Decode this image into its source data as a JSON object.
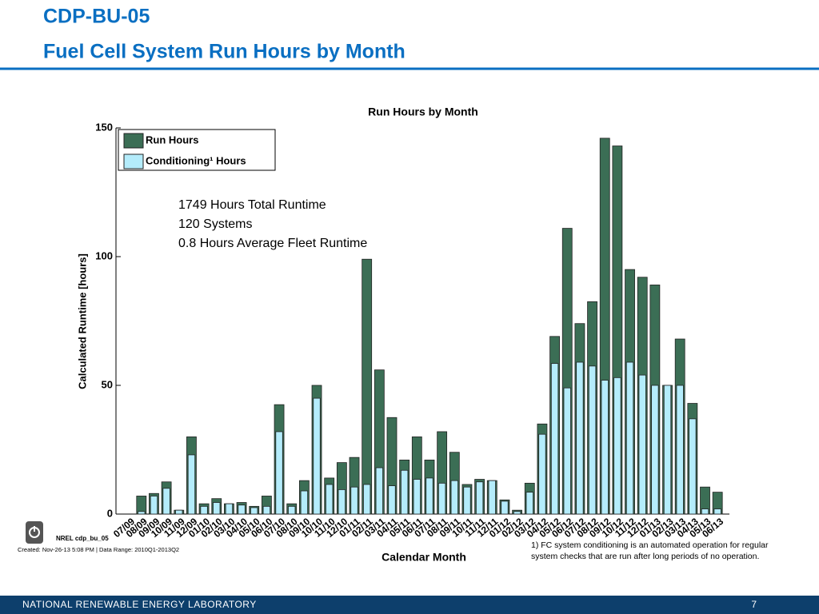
{
  "slide": {
    "title": [
      "CDP-BU-05",
      "Fuel Cell System Run Hours by Month"
    ],
    "tag": "NREL cdp_bu_05",
    "created": "Created: Nov-26-13  5:08 PM | Data Range: 2010Q1-2013Q2",
    "footnote": [
      "1) FC system conditioning is an automated operation for regular",
      "system checks that are run after long periods of no operation."
    ],
    "footer": "NATIONAL RENEWABLE ENERGY LABORATORY",
    "page": "7"
  },
  "chart_data": {
    "type": "bar",
    "title": "Run Hours by Month",
    "x_label": "Calendar Month",
    "y_label": "Calculated Runtime [hours]",
    "annotations": [
      "1749 Hours Total Runtime",
      "120 Systems",
      "0.8 Hours Average Fleet Runtime"
    ],
    "categories": [
      "07/09",
      "08/09",
      "09/09",
      "10/09",
      "11/09",
      "12/09",
      "01/10",
      "02/10",
      "03/10",
      "04/10",
      "05/10",
      "06/10",
      "07/10",
      "08/10",
      "09/10",
      "10/10",
      "11/10",
      "12/10",
      "01/11",
      "02/11",
      "03/11",
      "04/11",
      "05/11",
      "06/11",
      "07/11",
      "08/11",
      "09/11",
      "10/11",
      "11/11",
      "12/11",
      "01/12",
      "02/12",
      "03/12",
      "04/12",
      "05/12",
      "06/12",
      "07/12",
      "08/12",
      "09/12",
      "10/12",
      "11/12",
      "12/12",
      "01/13",
      "02/13",
      "03/13",
      "04/13",
      "05/13",
      "06/13"
    ],
    "series": [
      {
        "name": "Run Hours",
        "color": "#3b6e55",
        "values": [
          0,
          7,
          8,
          12.5,
          1.5,
          30,
          4,
          6,
          4,
          4.5,
          3,
          7,
          42.5,
          4,
          13,
          50,
          14,
          20,
          22,
          99,
          56,
          37.5,
          21,
          30,
          21,
          32,
          24,
          11.5,
          13.5,
          13,
          5.5,
          1.5,
          12,
          35,
          69,
          111,
          74,
          82.5,
          146,
          143,
          95,
          92,
          89,
          50,
          68,
          43,
          10.5,
          8.5
        ]
      },
      {
        "name": "Conditioning¹ Hours",
        "color": "#b4ecfb",
        "values": [
          0,
          1,
          7,
          10,
          1.5,
          23,
          3,
          4.5,
          4,
          3.5,
          2.5,
          3,
          32,
          3,
          9,
          45,
          11.5,
          9.5,
          10.5,
          11.5,
          18,
          11,
          17,
          13.5,
          14,
          12,
          13,
          10.5,
          12.5,
          13,
          5,
          1,
          8.5,
          31,
          58.5,
          49,
          59,
          57.5,
          52,
          53,
          59,
          54,
          50,
          50,
          50,
          37,
          2,
          2
        ]
      }
    ],
    "ylim": [
      0,
      150
    ],
    "yticks": [
      0,
      50,
      100,
      150
    ],
    "legend": "upper left"
  }
}
